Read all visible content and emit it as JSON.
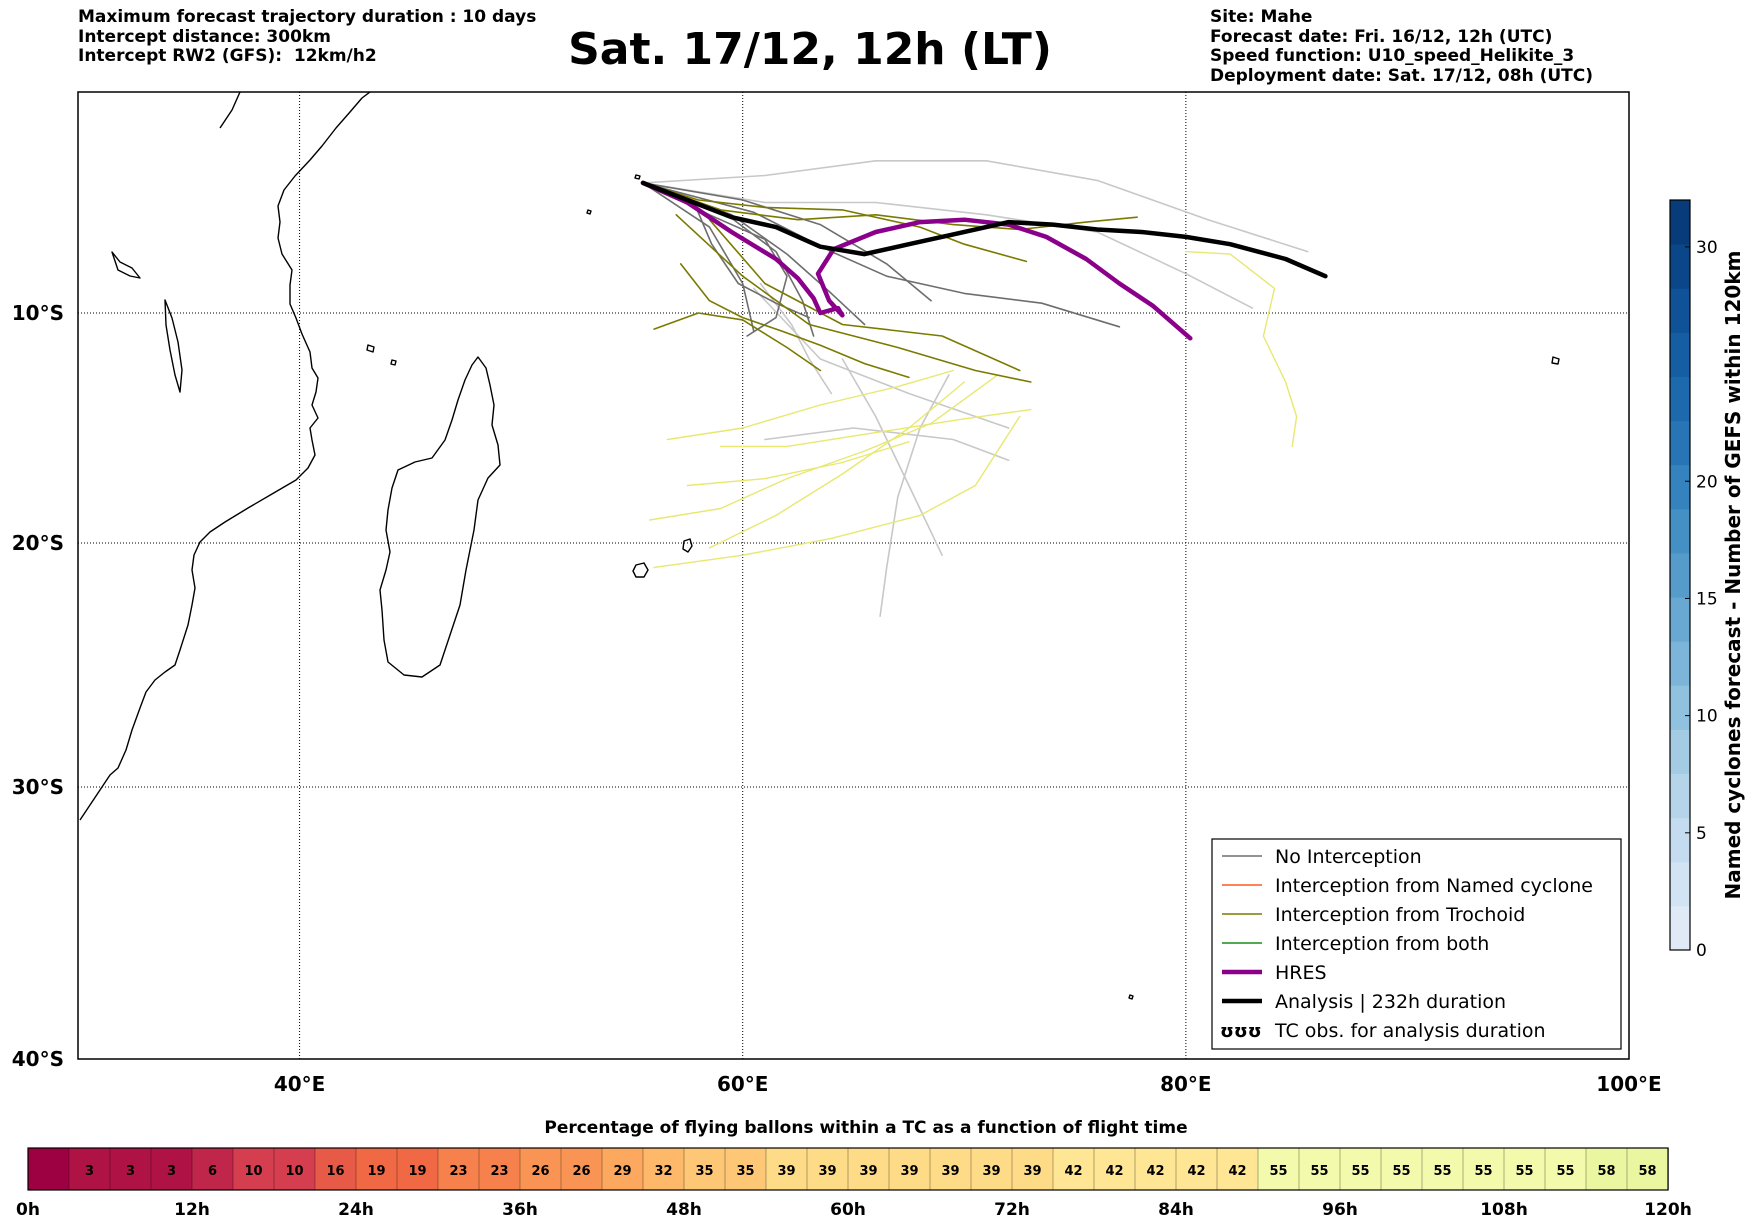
{
  "header": {
    "left_lines": [
      "Maximum forecast trajectory duration : 10 days",
      "Intercept distance: 300km",
      "Intercept RW2 (GFS):  12km/h2"
    ],
    "title": "Sat. 17/12, 12h (LT)",
    "right_lines": [
      "Site: Mahe",
      "Forecast date: Fri. 16/12, 12h (UTC)",
      "Speed function: U10_speed_Helikite_3",
      "Deployment date: Sat. 17/12, 08h (UTC)"
    ]
  },
  "chart_data": [
    {
      "type": "map-trajectories",
      "lon_ticks": [
        "40°E",
        "60°E",
        "80°E",
        "100°E"
      ],
      "lat_ticks": [
        "10°S",
        "20°S",
        "30°S",
        "40°S"
      ],
      "lon_range": [
        30,
        100
      ],
      "lat_range": [
        -40,
        -1
      ],
      "grid": true,
      "legend": {
        "position": "lower-right",
        "entries": [
          {
            "label": "No Interception",
            "color": "#6e6e6e",
            "width": 1.5
          },
          {
            "label": "Interception from Named cyclone",
            "color": "#ff5a1e",
            "width": 1.5
          },
          {
            "label": "Interception from Trochoid",
            "color": "#7a7a00",
            "width": 1.5
          },
          {
            "label": "Interception from both",
            "color": "#1a8c1a",
            "width": 1.5
          },
          {
            "label": "HRES",
            "color": "#8a008a",
            "width": 4.5
          },
          {
            "label": "Analysis | 232h duration",
            "color": "#000000",
            "width": 4.5
          },
          {
            "label": "TC obs. for analysis duration",
            "color": "#000000",
            "symbol": "ʊʊʊ"
          }
        ]
      },
      "series": [
        {
          "name": "HRES",
          "color": "#8a008a",
          "points": [
            [
              55.5,
              -4.7
            ],
            [
              57.5,
              -5.5
            ],
            [
              59.5,
              -6.7
            ],
            [
              61.5,
              -7.8
            ],
            [
              62.5,
              -8.6
            ],
            [
              63.2,
              -9.4
            ],
            [
              63.5,
              -10.0
            ],
            [
              64.3,
              -9.8
            ],
            [
              64.5,
              -10.1
            ],
            [
              63.9,
              -9.5
            ],
            [
              63.4,
              -8.4
            ],
            [
              64.1,
              -7.4
            ],
            [
              66,
              -6.7
            ],
            [
              68,
              -6.3
            ],
            [
              70,
              -6.2
            ],
            [
              72,
              -6.4
            ],
            [
              73.7,
              -6.9
            ],
            [
              75.5,
              -7.8
            ],
            [
              77,
              -8.8
            ],
            [
              78.5,
              -9.7
            ],
            [
              80.2,
              -11.1
            ]
          ]
        },
        {
          "name": "Analysis | 232h duration",
          "color": "#000000",
          "points": [
            [
              55.5,
              -4.7
            ],
            [
              57.5,
              -5.4
            ],
            [
              59.5,
              -6.1
            ],
            [
              61.5,
              -6.5
            ],
            [
              63.5,
              -7.3
            ],
            [
              65.5,
              -7.6
            ],
            [
              67.5,
              -7.2
            ],
            [
              69.5,
              -6.8
            ],
            [
              72,
              -6.3
            ],
            [
              74,
              -6.4
            ],
            [
              76,
              -6.6
            ],
            [
              78,
              -6.7
            ],
            [
              80,
              -6.9
            ],
            [
              82,
              -7.2
            ],
            [
              84.5,
              -7.8
            ],
            [
              86.3,
              -8.5
            ]
          ]
        },
        {
          "name": "Grey tracks",
          "color": "#6e6e6e",
          "tracks": [
            [
              [
                55.5,
                -4.7
              ],
              [
                59,
                -5.8
              ],
              [
                61.5,
                -7.5
              ],
              [
                62.7,
                -9.5
              ],
              [
                63.2,
                -11
              ]
            ],
            [
              [
                55.5,
                -4.7
              ],
              [
                58.5,
                -6.5
              ],
              [
                60,
                -8.8
              ],
              [
                60.5,
                -10.8
              ]
            ],
            [
              [
                55.5,
                -4.7
              ],
              [
                59.5,
                -6
              ],
              [
                62,
                -7.6
              ],
              [
                64,
                -9.2
              ],
              [
                65.5,
                -10.5
              ]
            ],
            [
              [
                55.5,
                -4.7
              ],
              [
                60,
                -5.4
              ],
              [
                63.5,
                -6.4
              ],
              [
                66.5,
                -8
              ],
              [
                68.5,
                -9.5
              ]
            ],
            [
              [
                55.5,
                -4.7
              ],
              [
                57.8,
                -5.5
              ],
              [
                58.6,
                -7.2
              ],
              [
                59.8,
                -8.8
              ],
              [
                61.5,
                -9.6
              ],
              [
                63,
                -10.2
              ]
            ],
            [
              [
                55.5,
                -4.7
              ],
              [
                60.5,
                -5.9
              ],
              [
                64,
                -7.5
              ],
              [
                66.5,
                -8.5
              ],
              [
                70,
                -9.2
              ],
              [
                73.5,
                -9.6
              ],
              [
                77,
                -10.6
              ]
            ],
            [
              [
                55.5,
                -4.7
              ],
              [
                58.5,
                -6
              ],
              [
                61,
                -7
              ],
              [
                62,
                -8.5
              ],
              [
                61.5,
                -10.2
              ],
              [
                60.2,
                -11
              ]
            ]
          ]
        },
        {
          "name": "Light grey tracks",
          "color": "#c8c8c8",
          "tracks": [
            [
              [
                55.5,
                -4.7
              ],
              [
                61,
                -4.4
              ],
              [
                66,
                -3.8
              ],
              [
                71,
                -3.8
              ],
              [
                76,
                -4.6
              ],
              [
                81,
                -6.2
              ],
              [
                85.5,
                -7.5
              ]
            ],
            [
              [
                55.5,
                -4.7
              ],
              [
                61,
                -5.5
              ],
              [
                66,
                -5.5
              ],
              [
                71,
                -6
              ],
              [
                76,
                -6.7
              ],
              [
                80,
                -8.4
              ],
              [
                83,
                -9.8
              ]
            ],
            [
              [
                60.8,
                -8.8
              ],
              [
                62.2,
                -10.5
              ],
              [
                63,
                -12
              ],
              [
                64,
                -13.5
              ]
            ],
            [
              [
                64.5,
                -12
              ],
              [
                66,
                -14.5
              ],
              [
                67.5,
                -17.5
              ],
              [
                69,
                -20.5
              ]
            ],
            [
              [
                69.3,
                -12.7
              ],
              [
                68,
                -15
              ],
              [
                67,
                -18
              ],
              [
                66.5,
                -21
              ],
              [
                66.2,
                -23
              ]
            ],
            [
              [
                60.5,
                -9
              ],
              [
                63.5,
                -12
              ],
              [
                67.5,
                -13.5
              ],
              [
                72,
                -15
              ]
            ],
            [
              [
                61,
                -15.5
              ],
              [
                65,
                -15
              ],
              [
                69.5,
                -15.5
              ],
              [
                72,
                -16.4
              ]
            ]
          ]
        },
        {
          "name": "Olive tracks",
          "color": "#7a7a00",
          "tracks": [
            [
              [
                55.5,
                -4.7
              ],
              [
                58,
                -5.4
              ],
              [
                61,
                -5.7
              ],
              [
                64.5,
                -5.8
              ],
              [
                68,
                -6.5
              ],
              [
                70,
                -7.2
              ],
              [
                72.8,
                -7.9
              ]
            ],
            [
              [
                55.5,
                -4.7
              ],
              [
                59,
                -5.8
              ],
              [
                62.5,
                -6.2
              ],
              [
                66,
                -6
              ],
              [
                69.5,
                -6.4
              ],
              [
                72.5,
                -6.6
              ],
              [
                75.5,
                -6.3
              ],
              [
                77.8,
                -6.1
              ]
            ],
            [
              [
                57,
                -6
              ],
              [
                60,
                -8.5
              ],
              [
                63,
                -10.5
              ],
              [
                67,
                -11.5
              ],
              [
                70.5,
                -12.5
              ],
              [
                73,
                -13
              ]
            ],
            [
              [
                58.5,
                -6.2
              ],
              [
                61,
                -8.8
              ],
              [
                64.5,
                -10.5
              ],
              [
                69,
                -11
              ],
              [
                72.5,
                -12.5
              ]
            ],
            [
              [
                57.2,
                -8
              ],
              [
                58.5,
                -9.5
              ],
              [
                60,
                -10.2
              ],
              [
                61.8,
                -10.8
              ],
              [
                63.5,
                -11.4
              ],
              [
                65.5,
                -12.2
              ],
              [
                67.5,
                -12.8
              ]
            ],
            [
              [
                56,
                -10.7
              ],
              [
                58,
                -10
              ],
              [
                60,
                -10.3
              ],
              [
                62,
                -11.5
              ],
              [
                63.5,
                -12.5
              ]
            ]
          ]
        },
        {
          "name": "Yellow tracks",
          "color": "#e8e870",
          "tracks": [
            [
              [
                56,
                -21
              ],
              [
                60,
                -20.5
              ],
              [
                64,
                -19.8
              ],
              [
                68,
                -18.8
              ],
              [
                70.5,
                -17.5
              ],
              [
                72.5,
                -14.5
              ]
            ],
            [
              [
                55.8,
                -19
              ],
              [
                59,
                -18.5
              ],
              [
                62,
                -17.2
              ],
              [
                65.5,
                -16
              ],
              [
                68.5,
                -14.8
              ],
              [
                71.5,
                -12.7
              ]
            ],
            [
              [
                58.5,
                -20.2
              ],
              [
                61.5,
                -18.8
              ],
              [
                64.5,
                -17
              ],
              [
                67.5,
                -15
              ],
              [
                70,
                -13
              ]
            ],
            [
              [
                56.6,
                -15.5
              ],
              [
                60,
                -15
              ],
              [
                63.5,
                -14
              ],
              [
                67,
                -13.2
              ],
              [
                69.5,
                -12.5
              ]
            ],
            [
              [
                59,
                -15.8
              ],
              [
                62,
                -15.8
              ],
              [
                66,
                -15.2
              ],
              [
                70,
                -14.6
              ],
              [
                73,
                -14.2
              ]
            ],
            [
              [
                57.5,
                -17.5
              ],
              [
                61,
                -17.2
              ],
              [
                64.5,
                -16.5
              ],
              [
                67.5,
                -15.6
              ]
            ],
            [
              [
                80,
                -7.5
              ],
              [
                82,
                -7.6
              ],
              [
                84,
                -9
              ],
              [
                83.5,
                -11
              ],
              [
                84.5,
                -13
              ],
              [
                85,
                -14.5
              ],
              [
                84.8,
                -15.8
              ]
            ]
          ]
        }
      ]
    },
    {
      "type": "colorbar",
      "label": "Named cyclones forecast - Number of GEFS within 120km",
      "range": [
        0,
        32
      ],
      "ticks": [
        0,
        5,
        10,
        15,
        20,
        30
      ]
    },
    {
      "type": "heatmap-strip",
      "title": "Percentage of flying ballons within a TC as a function of flight time",
      "x_ticks": [
        "0h",
        "12h",
        "24h",
        "36h",
        "48h",
        "60h",
        "72h",
        "84h",
        "96h",
        "108h",
        "120h"
      ],
      "values": [
        0,
        3,
        3,
        3,
        6,
        10,
        10,
        16,
        19,
        19,
        23,
        23,
        26,
        26,
        29,
        32,
        35,
        35,
        39,
        39,
        39,
        39,
        39,
        39,
        39,
        42,
        42,
        42,
        42,
        42,
        55,
        55,
        55,
        55,
        55,
        55,
        55,
        55,
        58,
        58
      ],
      "value_labels": [
        "",
        "3",
        "3",
        "3",
        "6",
        "10",
        "10",
        "16",
        "19",
        "19",
        "23",
        "23",
        "26",
        "26",
        "29",
        "32",
        "35",
        "35",
        "39",
        "39",
        "39",
        "39",
        "39",
        "39",
        "39",
        "42",
        "42",
        "42",
        "42",
        "42",
        "55",
        "55",
        "55",
        "55",
        "55",
        "55",
        "55",
        "55",
        "58",
        "58"
      ]
    }
  ]
}
